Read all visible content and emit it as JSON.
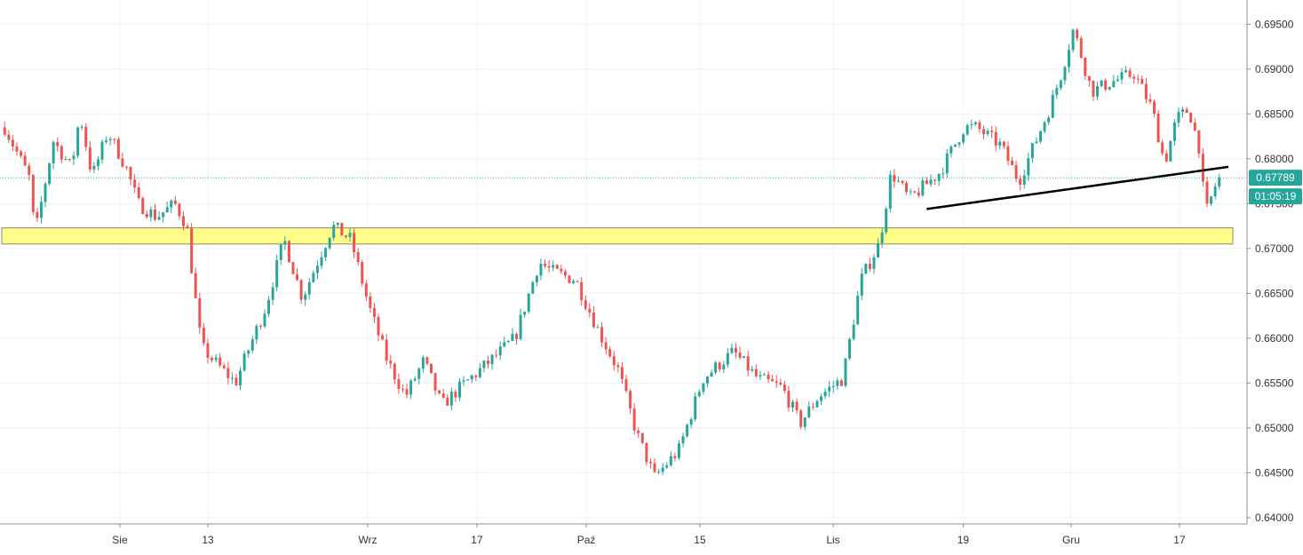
{
  "chart_data": {
    "type": "candlestick",
    "x_tick_labels": [
      "Sie",
      "13",
      "Wrz",
      "17",
      "Paź",
      "15",
      "Lis",
      "19",
      "Gru",
      "17"
    ],
    "y_tick_labels": [
      "0.64000",
      "0.64500",
      "0.65000",
      "0.65500",
      "0.66000",
      "0.66500",
      "0.67000",
      "0.67500",
      "0.68000",
      "0.68500",
      "0.69000",
      "0.69500"
    ],
    "ylim": [
      0.6393,
      0.6977
    ],
    "up_color": "#26a69a",
    "down_color": "#ef5350",
    "path": [
      [
        0,
        0.6835
      ],
      [
        0.02,
        0.678
      ],
      [
        0.025,
        0.6715
      ],
      [
        0.04,
        0.682
      ],
      [
        0.055,
        0.679
      ],
      [
        0.062,
        0.685
      ],
      [
        0.072,
        0.678
      ],
      [
        0.085,
        0.683
      ],
      [
        0.1,
        0.679
      ],
      [
        0.11,
        0.675
      ],
      [
        0.125,
        0.6735
      ],
      [
        0.14,
        0.675
      ],
      [
        0.15,
        0.6725
      ],
      [
        0.155,
        0.6665
      ],
      [
        0.162,
        0.659
      ],
      [
        0.172,
        0.6575
      ],
      [
        0.19,
        0.655
      ],
      [
        0.2,
        0.6585
      ],
      [
        0.215,
        0.6635
      ],
      [
        0.23,
        0.671
      ],
      [
        0.245,
        0.6645
      ],
      [
        0.27,
        0.6725
      ],
      [
        0.285,
        0.671
      ],
      [
        0.3,
        0.6635
      ],
      [
        0.315,
        0.6575
      ],
      [
        0.33,
        0.6535
      ],
      [
        0.345,
        0.6575
      ],
      [
        0.36,
        0.6525
      ],
      [
        0.375,
        0.6545
      ],
      [
        0.4,
        0.6575
      ],
      [
        0.42,
        0.66
      ],
      [
        0.44,
        0.6685
      ],
      [
        0.45,
        0.6675
      ],
      [
        0.47,
        0.6665
      ],
      [
        0.49,
        0.6605
      ],
      [
        0.505,
        0.6565
      ],
      [
        0.52,
        0.6495
      ],
      [
        0.535,
        0.6445
      ],
      [
        0.555,
        0.6475
      ],
      [
        0.575,
        0.6555
      ],
      [
        0.6,
        0.6585
      ],
      [
        0.62,
        0.6555
      ],
      [
        0.64,
        0.6545
      ],
      [
        0.655,
        0.6505
      ],
      [
        0.67,
        0.6535
      ],
      [
        0.69,
        0.6555
      ],
      [
        0.705,
        0.6665
      ],
      [
        0.72,
        0.6705
      ],
      [
        0.73,
        0.6785
      ],
      [
        0.745,
        0.6755
      ],
      [
        0.77,
        0.6785
      ],
      [
        0.79,
        0.6835
      ],
      [
        0.8,
        0.6835
      ],
      [
        0.82,
        0.6815
      ],
      [
        0.835,
        0.6775
      ],
      [
        0.86,
        0.6855
      ],
      [
        0.87,
        0.6895
      ],
      [
        0.88,
        0.6945
      ],
      [
        0.895,
        0.6875
      ],
      [
        0.91,
        0.6885
      ],
      [
        0.93,
        0.6895
      ],
      [
        0.945,
        0.6855
      ],
      [
        0.955,
        0.6795
      ],
      [
        0.965,
        0.6845
      ],
      [
        0.975,
        0.6855
      ],
      [
        0.985,
        0.6805
      ],
      [
        0.988,
        0.6735
      ],
      [
        0.998,
        0.6775
      ]
    ],
    "candle_count": 300,
    "horizontal_zone": {
      "low": 0.6705,
      "high": 0.6723,
      "color": "#ffff8a"
    },
    "trendline": {
      "x1": 0.756,
      "y1": 0.6744,
      "x2": 1.0,
      "y2": 0.6791
    },
    "current_price": {
      "value": "0.67789",
      "price": 0.67789,
      "countdown": "01:05:19",
      "color": "#26a69a"
    }
  }
}
